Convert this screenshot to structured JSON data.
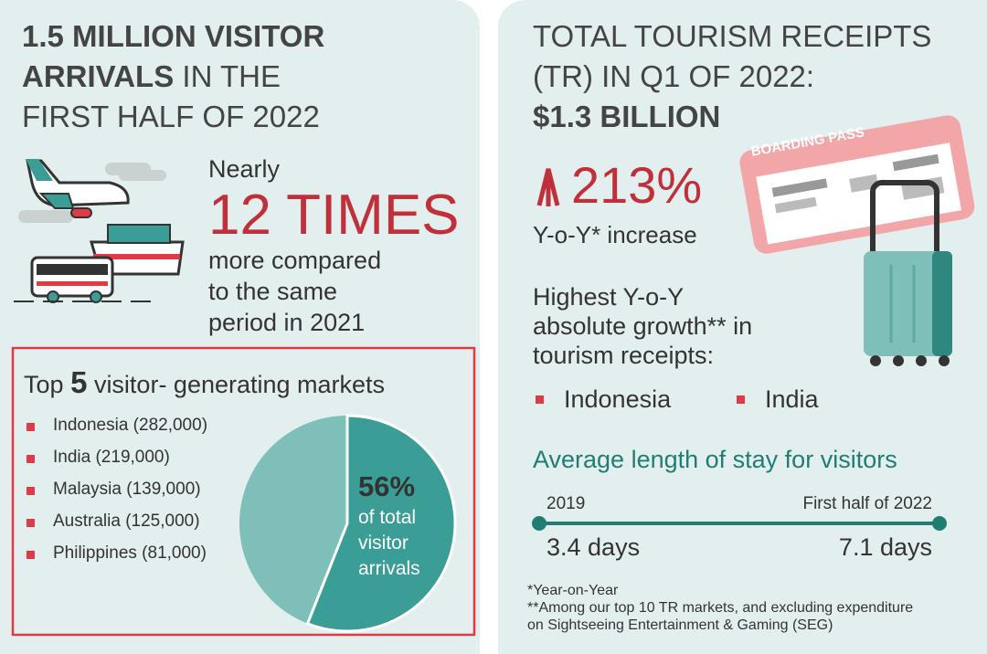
{
  "left": {
    "title": {
      "line1": "1.5 MILLION VISITOR",
      "line2_bold": "ARRIVALS",
      "line2": "IN THE",
      "line3": "FIRST HALF OF 2022"
    },
    "nearly": "Nearly",
    "times": "12 TIMES",
    "comparison_lines": [
      "more compared",
      "to the same",
      "period in 2021"
    ],
    "markets": {
      "heading_pre": "Top",
      "heading_num": "5",
      "heading_post": "visitor- generating markets",
      "items": [
        "Indonesia (282,000)",
        "India (219,000)",
        "Malaysia (139,000)",
        "Australia (125,000)",
        "Philippines (81,000)"
      ],
      "pie": {
        "value": 56,
        "value_label": "56%",
        "caption_lines": [
          "of total",
          "visitor",
          "arrivals"
        ]
      }
    }
  },
  "right": {
    "title": {
      "line1": "TOTAL TOURISM RECEIPTS",
      "line2": "(TR) IN Q1 OF 2022:",
      "line3": "$1.3 BILLION"
    },
    "growth": "213%",
    "growth_caption": "Y-o-Y* increase",
    "boarding_pass": "BOARDING PASS",
    "highest_lines": [
      "Highest Y-o-Y",
      "absolute growth** in",
      "tourism receipts:"
    ],
    "highest_markets": [
      "Indonesia",
      "India"
    ],
    "stay": {
      "heading": "Average length of stay for visitors",
      "start_label": "2019",
      "end_label": "First half of 2022",
      "start_value": "3.4 days",
      "end_value": "7.1 days"
    },
    "footnotes": [
      "*Year-on-Year",
      "**Among our top 10 TR markets, and excluding expenditure",
      "on Sightseeing Entertainment & Gaming (SEG)"
    ]
  }
}
